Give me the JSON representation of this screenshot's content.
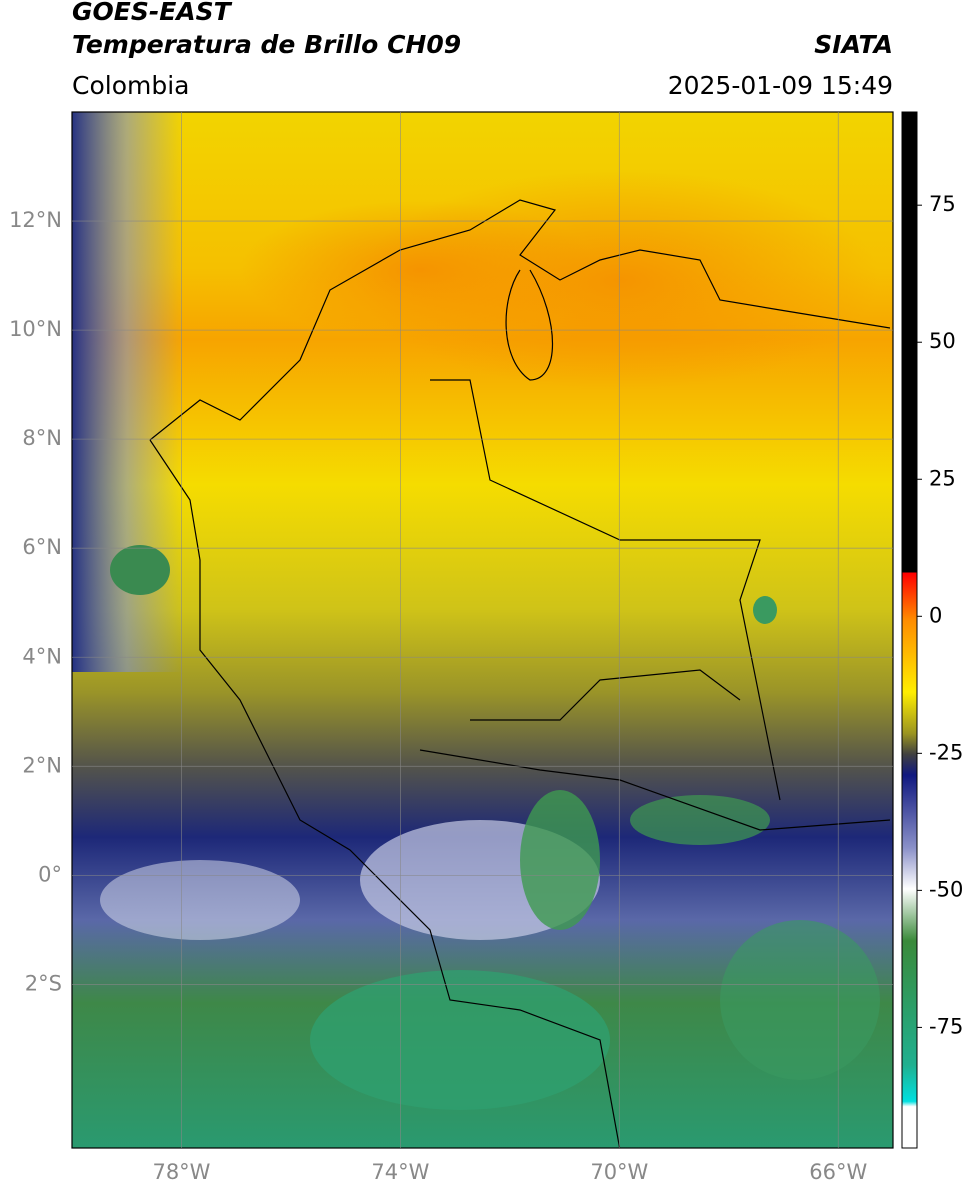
{
  "header": {
    "satellite": "GOES-EAST",
    "title": "Temperatura de Brillo CH09",
    "source": "SIATA",
    "region": "Colombia",
    "datetime": "2025-01-09 15:49"
  },
  "map": {
    "xlim": [
      -80,
      -65
    ],
    "ylim": [
      -5,
      14
    ],
    "xticks": [
      {
        "value": -78,
        "label": "78°W"
      },
      {
        "value": -74,
        "label": "74°W"
      },
      {
        "value": -70,
        "label": "70°W"
      },
      {
        "value": -66,
        "label": "66°W"
      }
    ],
    "yticks": [
      {
        "value": 12,
        "label": "12°N"
      },
      {
        "value": 10,
        "label": "10°N"
      },
      {
        "value": 8,
        "label": "8°N"
      },
      {
        "value": 6,
        "label": "6°N"
      },
      {
        "value": 4,
        "label": "4°N"
      },
      {
        "value": 2,
        "label": "2°N"
      },
      {
        "value": 0,
        "label": "0°"
      },
      {
        "value": -2,
        "label": "2°S"
      }
    ],
    "grid": true
  },
  "colorbar": {
    "lim": [
      -97,
      92
    ],
    "ticks": [
      75,
      50,
      25,
      0,
      -25,
      -50,
      -75
    ]
  }
}
